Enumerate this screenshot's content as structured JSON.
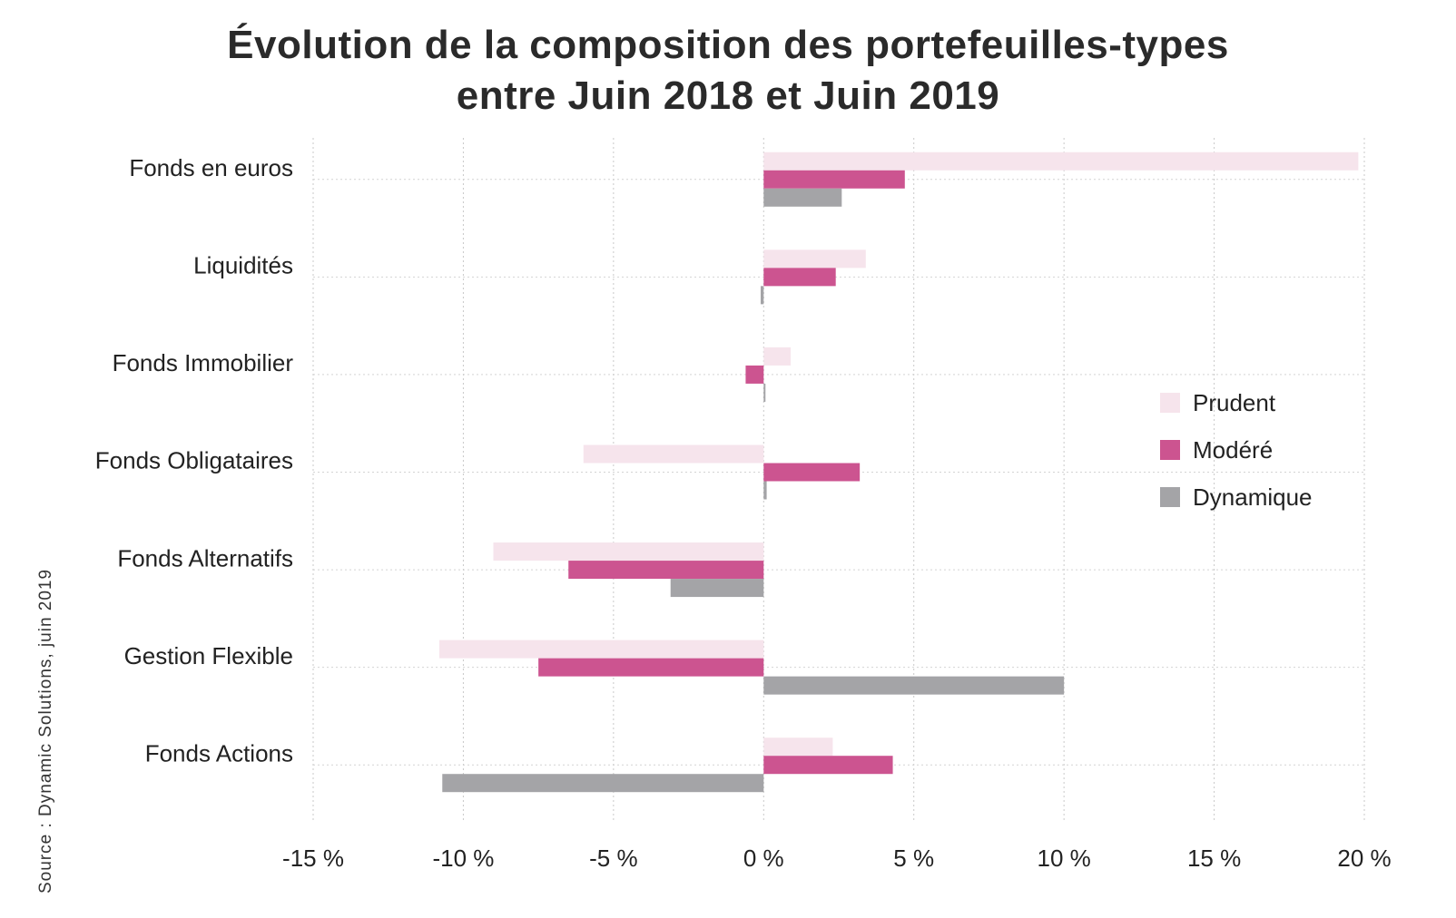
{
  "title_line1": "Évolution de la composition des portefeuilles-types",
  "title_line2": "entre Juin 2018 et Juin 2019",
  "source": "Source : Dynamic Solutions, juin 2019",
  "chart_data": {
    "type": "bar",
    "orientation": "horizontal",
    "title": "Évolution de la composition des portefeuilles-types entre Juin 2018 et Juin 2019",
    "categories": [
      "Fonds en euros",
      "Liquidités",
      "Fonds Immobilier",
      "Fonds Obligataires",
      "Fonds Alternatifs",
      "Gestion Flexible",
      "Fonds Actions"
    ],
    "series": [
      {
        "name": "Prudent",
        "color": "#f6e4ec",
        "values": [
          19.8,
          3.4,
          0.9,
          -6.0,
          -9.0,
          -10.8,
          2.3
        ]
      },
      {
        "name": "Modéré",
        "color": "#cc5490",
        "values": [
          4.7,
          2.4,
          -0.6,
          3.2,
          -6.5,
          -7.5,
          4.3
        ]
      },
      {
        "name": "Dynamique",
        "color": "#a4a4a7",
        "values": [
          2.6,
          -0.1,
          0.0,
          0.1,
          -3.1,
          10.0,
          -10.7
        ]
      }
    ],
    "xlim": [
      -15,
      20
    ],
    "xticks": [
      -15,
      -10,
      -5,
      0,
      5,
      10,
      15,
      20
    ],
    "xtick_labels": [
      "-15 %",
      "-10 %",
      "-5 %",
      "0 %",
      "5 %",
      "10 %",
      "15 %",
      "20 %"
    ],
    "grid": true,
    "legend_position": "right"
  }
}
